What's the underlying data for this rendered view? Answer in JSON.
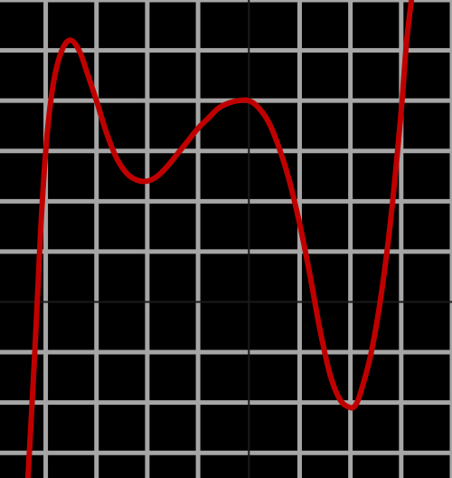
{
  "chart_data": {
    "type": "line",
    "title": "",
    "xlabel": "",
    "ylabel": "",
    "xlim": [
      -4.9,
      4.0
    ],
    "ylim": [
      -3.5,
      6.0
    ],
    "grid": true,
    "colors": {
      "background": "#000000",
      "grid": "#a6a6a6",
      "axis": "#1a1a1a",
      "line": "#c00000"
    },
    "series": [
      {
        "points": [
          [
            -4.35,
            -3.5
          ],
          [
            -4.3,
            -2.6
          ],
          [
            -4.2,
            -0.7
          ],
          [
            -4.1,
            1.4
          ],
          [
            -4.0,
            3.0
          ],
          [
            -3.9,
            4.0
          ],
          [
            -3.8,
            4.6
          ],
          [
            -3.7,
            4.95
          ],
          [
            -3.6,
            5.15
          ],
          [
            -3.5,
            5.2
          ],
          [
            -3.4,
            5.1
          ],
          [
            -3.3,
            4.9
          ],
          [
            -3.2,
            4.6
          ],
          [
            -3.0,
            4.0
          ],
          [
            -2.8,
            3.35
          ],
          [
            -2.6,
            2.85
          ],
          [
            -2.4,
            2.55
          ],
          [
            -2.2,
            2.42
          ],
          [
            -2.0,
            2.4
          ],
          [
            -1.8,
            2.5
          ],
          [
            -1.6,
            2.7
          ],
          [
            -1.4,
            2.95
          ],
          [
            -1.2,
            3.2
          ],
          [
            -1.0,
            3.45
          ],
          [
            -0.8,
            3.65
          ],
          [
            -0.6,
            3.85
          ],
          [
            -0.4,
            3.95
          ],
          [
            -0.2,
            4.0
          ],
          [
            0.0,
            4.0
          ],
          [
            0.2,
            3.85
          ],
          [
            0.4,
            3.55
          ],
          [
            0.6,
            3.05
          ],
          [
            0.8,
            2.4
          ],
          [
            1.0,
            1.55
          ],
          [
            1.2,
            0.55
          ],
          [
            1.4,
            -0.55
          ],
          [
            1.6,
            -1.45
          ],
          [
            1.8,
            -1.95
          ],
          [
            2.0,
            -2.1
          ],
          [
            2.1,
            -2.05
          ],
          [
            2.2,
            -1.8
          ],
          [
            2.4,
            -1.05
          ],
          [
            2.6,
            0.1
          ],
          [
            2.8,
            1.7
          ],
          [
            3.0,
            3.8
          ],
          [
            3.1,
            5.1
          ],
          [
            3.2,
            6.0
          ]
        ]
      }
    ]
  }
}
